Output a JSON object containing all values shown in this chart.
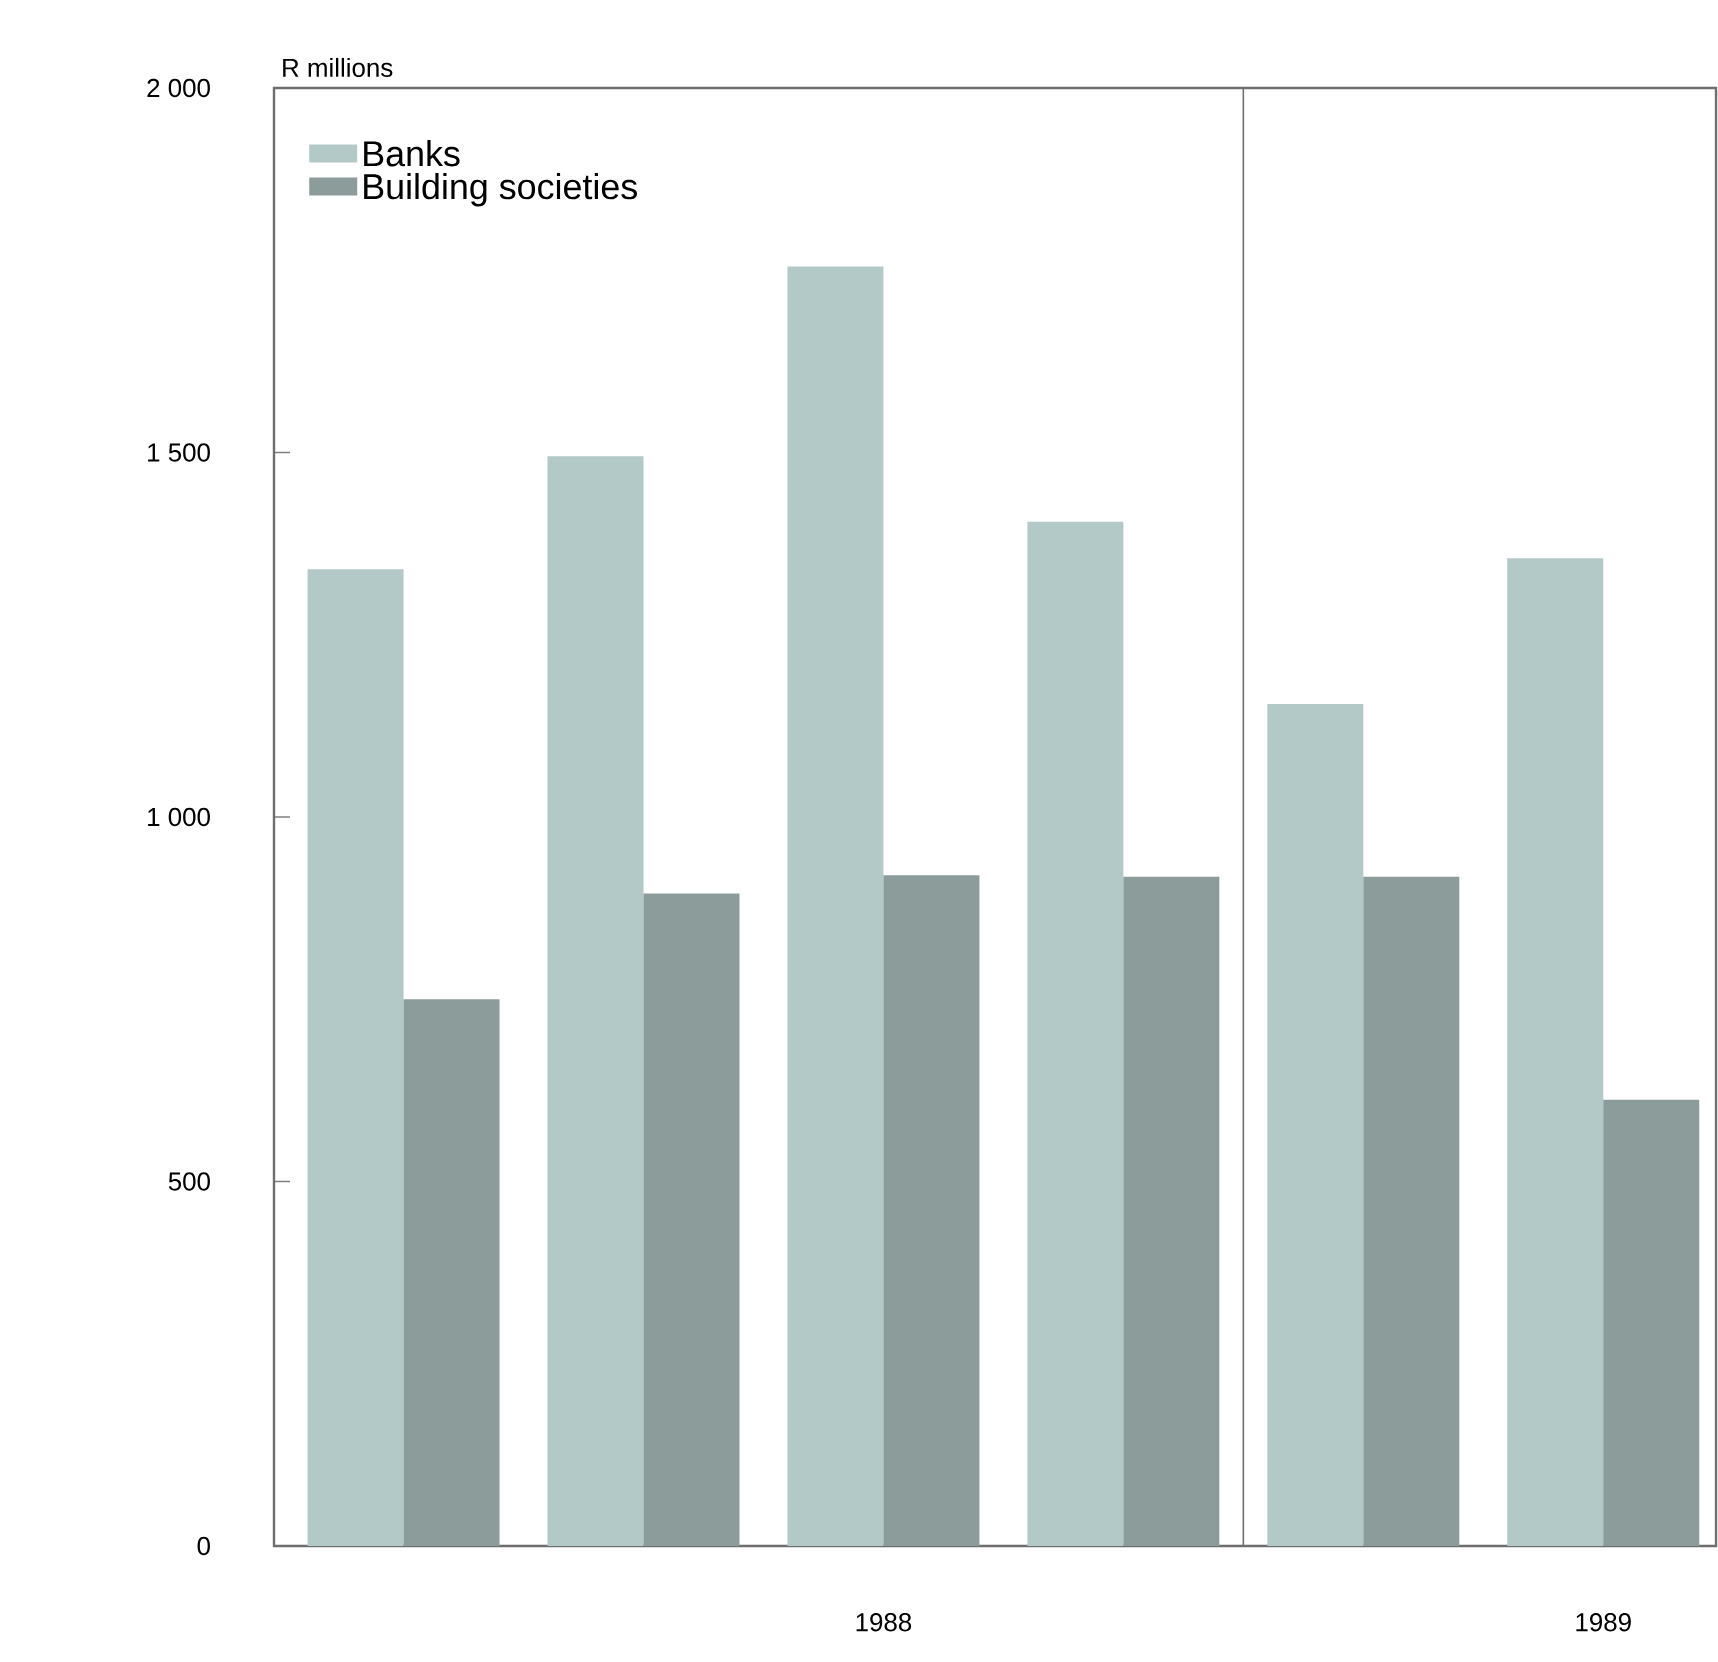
{
  "chart_data": {
    "type": "bar",
    "ylabel": "R millions",
    "categories": [
      null,
      null,
      "1988",
      null,
      null,
      "1989"
    ],
    "series": [
      {
        "name": "Banks",
        "color": "#b3c9c7",
        "values": [
          1340,
          1495,
          1755,
          1405,
          1155,
          1355
        ]
      },
      {
        "name": "Building societies",
        "color": "#8b9c9b",
        "values": [
          750,
          895,
          920,
          918,
          918,
          612
        ]
      }
    ],
    "ylim": [
      0,
      2000
    ],
    "yticks": [
      0,
      500,
      {
        "value": 1000,
        "label": "1 000"
      },
      {
        "value": 1500,
        "label": "1 500"
      },
      {
        "value": 2000,
        "label": "2 000"
      }
    ],
    "legend": "top left",
    "grid": false
  }
}
